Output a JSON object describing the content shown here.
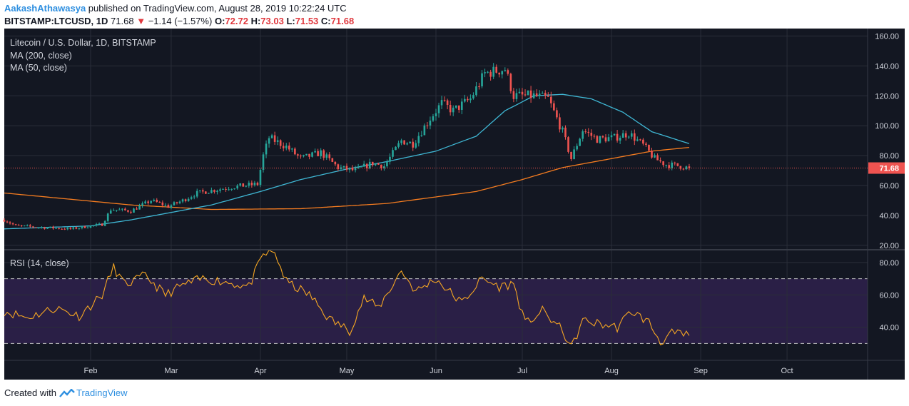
{
  "header": {
    "author": "AakashAthawasya",
    "published_text": "published on TradingView.com, August 28, 2019 10:22:24 UTC",
    "symbol": "BITSTAMP:LTCUSD, 1D",
    "last": "71.68",
    "change": "−1.14 (−1.57%)",
    "open_label": "O:",
    "open": "72.72",
    "high_label": "H:",
    "high": "73.03",
    "low_label": "L:",
    "low": "71.53",
    "close_label": "C:",
    "close": "71.68"
  },
  "footer": {
    "created_with": "Created with",
    "brand": "TradingView"
  },
  "colors": {
    "background": "#131722",
    "grid": "#2a2e39",
    "up": "#26a69a",
    "down": "#ef5350",
    "ma200": "#f57c20",
    "ma50": "#3fb7d4",
    "rsi": "#f5a623",
    "rsi_band": "#2a1f46",
    "price_label": "#ef5350"
  },
  "chart_data": [
    {
      "type": "candlestick",
      "title": "Litecoin / U.S. Dollar, 1D, BITSTAMP",
      "legend": [
        "MA (200, close)",
        "MA (50, close)"
      ],
      "x_tick_labels": [
        "Feb",
        "Mar",
        "Apr",
        "May",
        "Jun",
        "Jul",
        "Aug",
        "Sep",
        "Oct"
      ],
      "x_ticks": [
        "2019-02-01",
        "2019-03-01",
        "2019-04-01",
        "2019-05-01",
        "2019-06-01",
        "2019-07-01",
        "2019-08-01",
        "2019-09-01",
        "2019-10-01"
      ],
      "x_range": [
        "2019-01-02",
        "2019-10-29"
      ],
      "y_ticks": [
        20,
        40,
        60,
        80,
        100,
        120,
        140,
        160
      ],
      "y_tick_labels": [
        "20.00",
        "40.00",
        "60.00",
        "80.00",
        "100.00",
        "120.00",
        "140.00",
        "160.00"
      ],
      "ylim": [
        18,
        165
      ],
      "last_price": 71.68,
      "last_price_label": "71.68",
      "price_anchors": [
        [
          "2019-01-02",
          37
        ],
        [
          "2019-01-06",
          33
        ],
        [
          "2019-01-15",
          32
        ],
        [
          "2019-01-25",
          31
        ],
        [
          "2019-02-05",
          34
        ],
        [
          "2019-02-08",
          44
        ],
        [
          "2019-02-15",
          43
        ],
        [
          "2019-02-22",
          50
        ],
        [
          "2019-02-28",
          46
        ],
        [
          "2019-03-05",
          50
        ],
        [
          "2019-03-10",
          55
        ],
        [
          "2019-03-16",
          57
        ],
        [
          "2019-03-22",
          59
        ],
        [
          "2019-03-31",
          61
        ],
        [
          "2019-04-02",
          80
        ],
        [
          "2019-04-04",
          92
        ],
        [
          "2019-04-10",
          86
        ],
        [
          "2019-04-15",
          78
        ],
        [
          "2019-04-22",
          82
        ],
        [
          "2019-04-28",
          72
        ],
        [
          "2019-05-04",
          70
        ],
        [
          "2019-05-10",
          75
        ],
        [
          "2019-05-14",
          73
        ],
        [
          "2019-05-20",
          90
        ],
        [
          "2019-05-24",
          88
        ],
        [
          "2019-05-30",
          105
        ],
        [
          "2019-06-03",
          115
        ],
        [
          "2019-06-07",
          110
        ],
        [
          "2019-06-13",
          118
        ],
        [
          "2019-06-18",
          135
        ],
        [
          "2019-06-25",
          138
        ],
        [
          "2019-06-28",
          120
        ],
        [
          "2019-07-05",
          120
        ],
        [
          "2019-07-10",
          118
        ],
        [
          "2019-07-15",
          96
        ],
        [
          "2019-07-18",
          78
        ],
        [
          "2019-07-22",
          97
        ],
        [
          "2019-07-27",
          91
        ],
        [
          "2019-08-02",
          92
        ],
        [
          "2019-08-07",
          95
        ],
        [
          "2019-08-12",
          87
        ],
        [
          "2019-08-16",
          78
        ],
        [
          "2019-08-20",
          74
        ],
        [
          "2019-08-25",
          73
        ],
        [
          "2019-08-28",
          71.68
        ]
      ],
      "ma200": {
        "name": "MA (200, close)",
        "points": [
          [
            "2019-01-02",
            55
          ],
          [
            "2019-02-15",
            47
          ],
          [
            "2019-03-15",
            44
          ],
          [
            "2019-04-15",
            44.5
          ],
          [
            "2019-05-15",
            48
          ],
          [
            "2019-06-15",
            56
          ],
          [
            "2019-07-01",
            64
          ],
          [
            "2019-07-15",
            72
          ],
          [
            "2019-08-01",
            78
          ],
          [
            "2019-08-15",
            83
          ],
          [
            "2019-08-28",
            85.5
          ]
        ]
      },
      "ma50": {
        "name": "MA (50, close)",
        "points": [
          [
            "2019-01-02",
            31
          ],
          [
            "2019-02-01",
            33
          ],
          [
            "2019-02-15",
            37
          ],
          [
            "2019-03-01",
            42
          ],
          [
            "2019-03-15",
            47
          ],
          [
            "2019-04-01",
            56
          ],
          [
            "2019-04-15",
            64
          ],
          [
            "2019-05-01",
            71
          ],
          [
            "2019-05-15",
            76
          ],
          [
            "2019-06-01",
            83
          ],
          [
            "2019-06-15",
            93
          ],
          [
            "2019-06-25",
            110
          ],
          [
            "2019-07-05",
            120
          ],
          [
            "2019-07-15",
            121
          ],
          [
            "2019-07-25",
            118
          ],
          [
            "2019-08-05",
            109
          ],
          [
            "2019-08-15",
            96
          ],
          [
            "2019-08-28",
            88
          ]
        ]
      }
    },
    {
      "type": "line",
      "title": "RSI (14, close)",
      "y_ticks": [
        40,
        60,
        80
      ],
      "y_tick_labels": [
        "40.00",
        "60.00",
        "80.00"
      ],
      "ylim": [
        20,
        87
      ],
      "overbought": 70,
      "oversold": 30,
      "series": [
        {
          "name": "RSI (14, close)",
          "points": [
            [
              "2019-01-02",
              50
            ],
            [
              "2019-01-10",
              46
            ],
            [
              "2019-01-20",
              52
            ],
            [
              "2019-01-28",
              47
            ],
            [
              "2019-02-05",
              60
            ],
            [
              "2019-02-09",
              77
            ],
            [
              "2019-02-13",
              66
            ],
            [
              "2019-02-20",
              72
            ],
            [
              "2019-02-27",
              60
            ],
            [
              "2019-03-05",
              66
            ],
            [
              "2019-03-12",
              70
            ],
            [
              "2019-03-20",
              68
            ],
            [
              "2019-03-28",
              65
            ],
            [
              "2019-04-02",
              85
            ],
            [
              "2019-04-06",
              86
            ],
            [
              "2019-04-10",
              68
            ],
            [
              "2019-04-18",
              60
            ],
            [
              "2019-04-25",
              45
            ],
            [
              "2019-05-02",
              38
            ],
            [
              "2019-05-07",
              58
            ],
            [
              "2019-05-12",
              52
            ],
            [
              "2019-05-20",
              75
            ],
            [
              "2019-05-25",
              62
            ],
            [
              "2019-06-01",
              70
            ],
            [
              "2019-06-05",
              63
            ],
            [
              "2019-06-10",
              55
            ],
            [
              "2019-06-17",
              70
            ],
            [
              "2019-06-23",
              65
            ],
            [
              "2019-06-28",
              67
            ],
            [
              "2019-07-02",
              42
            ],
            [
              "2019-07-08",
              50
            ],
            [
              "2019-07-15",
              38
            ],
            [
              "2019-07-18",
              27
            ],
            [
              "2019-07-22",
              44
            ],
            [
              "2019-07-28",
              42
            ],
            [
              "2019-08-03",
              40
            ],
            [
              "2019-08-08",
              50
            ],
            [
              "2019-08-14",
              43
            ],
            [
              "2019-08-18",
              31
            ],
            [
              "2019-08-22",
              36
            ],
            [
              "2019-08-28",
              35
            ]
          ]
        }
      ]
    }
  ]
}
